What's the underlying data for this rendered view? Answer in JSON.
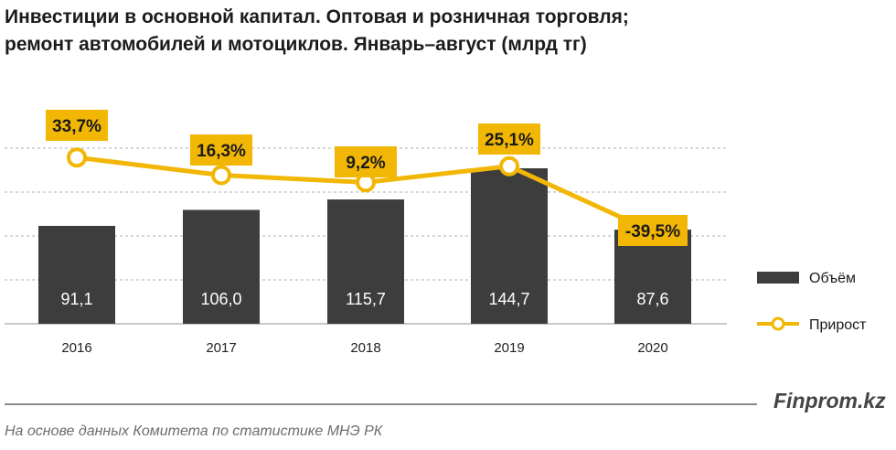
{
  "header": {
    "title_line1": "Инвестиции в основной капитал. Оптовая и розничная торговля;",
    "title_line2": "ремонт автомобилей и мотоциклов. Январь–август (млрд тг)"
  },
  "footer": {
    "brand": "Finprom.kz",
    "source": "На основе данных  Комитета по статистике МНЭ РК"
  },
  "colors": {
    "bar": "#3d3d3d",
    "line": "#f2b705",
    "label_bg": "#f2b705",
    "grid": "#bfbfbf"
  },
  "chart_data": {
    "type": "bar",
    "categories": [
      "2016",
      "2017",
      "2018",
      "2019",
      "2020"
    ],
    "series": [
      {
        "name": "Объём",
        "type": "bar",
        "values": [
          91.1,
          106.0,
          115.7,
          144.7,
          87.6
        ],
        "labels": [
          "91,1",
          "106,0",
          "115,7",
          "144,7",
          "87,6"
        ]
      },
      {
        "name": "Прирост",
        "type": "line",
        "values": [
          33.7,
          16.3,
          9.2,
          25.1,
          -39.5
        ],
        "labels": [
          "33,7%",
          "16,3%",
          "9,2%",
          "25,1%",
          "-39,5%"
        ]
      }
    ],
    "legend_position": "right",
    "grid": true
  }
}
